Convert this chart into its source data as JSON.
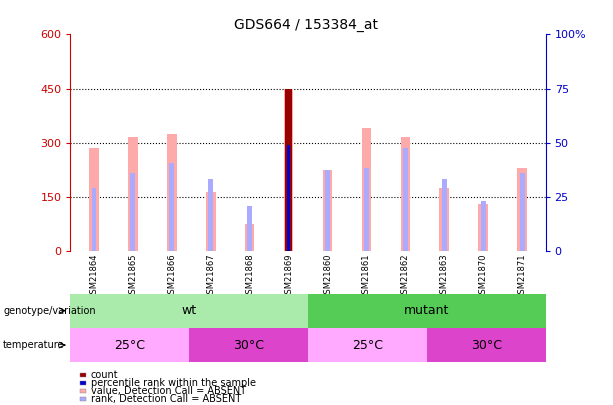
{
  "title": "GDS664 / 153384_at",
  "samples": [
    "GSM21864",
    "GSM21865",
    "GSM21866",
    "GSM21867",
    "GSM21868",
    "GSM21869",
    "GSM21860",
    "GSM21861",
    "GSM21862",
    "GSM21863",
    "GSM21870",
    "GSM21871"
  ],
  "value_absent": [
    285,
    315,
    325,
    165,
    75,
    450,
    225,
    340,
    315,
    175,
    130,
    230
  ],
  "rank_absent": [
    175,
    215,
    245,
    200,
    125,
    295,
    225,
    230,
    285,
    200,
    140,
    215
  ],
  "count_val": [
    0,
    0,
    0,
    0,
    0,
    450,
    0,
    0,
    0,
    0,
    0,
    0
  ],
  "percentile_val": [
    0,
    0,
    0,
    0,
    0,
    293,
    0,
    0,
    0,
    0,
    0,
    0
  ],
  "ylim_left": [
    0,
    600
  ],
  "yticks_left": [
    0,
    150,
    300,
    450,
    600
  ],
  "yticks_right": [
    0,
    25,
    50,
    75,
    100
  ],
  "left_axis_color": "#cc0000",
  "right_axis_color": "#0000cc",
  "bar_value_color": "#ffaaaa",
  "bar_rank_color": "#aaaaff",
  "count_color": "#990000",
  "percentile_color": "#0000cc",
  "bg_label_row": "#cccccc",
  "wt_color": "#aaeaaa",
  "mutant_color": "#55cc55",
  "temp_25_color": "#ffaaff",
  "temp_30_color": "#dd44cc",
  "genotype_label": "genotype/variation",
  "temperature_label": "temperature",
  "legend_items": [
    {
      "label": "count",
      "color": "#990000"
    },
    {
      "label": "percentile rank within the sample",
      "color": "#0000cc"
    },
    {
      "label": "value, Detection Call = ABSENT",
      "color": "#ffaaaa"
    },
    {
      "label": "rank, Detection Call = ABSENT",
      "color": "#aaaaff"
    }
  ]
}
